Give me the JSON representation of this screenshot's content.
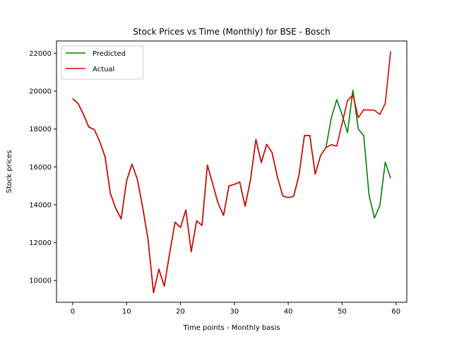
{
  "chart_data": {
    "type": "line",
    "title": "Stock Prices vs Time (Monthly) for BSE - Bosch",
    "xlabel": "Time points - Monthly basis",
    "ylabel": "Stock prices",
    "xlim": [
      -3,
      62
    ],
    "ylim": [
      8850,
      22650
    ],
    "xticks": [
      0,
      10,
      20,
      30,
      40,
      50,
      60
    ],
    "yticks": [
      10000,
      12000,
      14000,
      16000,
      18000,
      20000,
      22000
    ],
    "xtick_labels": [
      "0",
      "10",
      "20",
      "30",
      "40",
      "50",
      "60"
    ],
    "ytick_labels": [
      "10000",
      "12000",
      "14000",
      "16000",
      "18000",
      "20000",
      "22000"
    ],
    "grid": false,
    "legend_position": "upper-left",
    "series": [
      {
        "name": "Predicted",
        "color": "#008000",
        "x": [
          0,
          1,
          2,
          3,
          4,
          5,
          6,
          7,
          8,
          9,
          10,
          11,
          12,
          13,
          14,
          15,
          16,
          17,
          18,
          19,
          20,
          21,
          22,
          23,
          24,
          25,
          26,
          27,
          28,
          29,
          30,
          31,
          32,
          33,
          34,
          35,
          36,
          37,
          38,
          39,
          40,
          41,
          42,
          43,
          44,
          45,
          46,
          47,
          48,
          49,
          50,
          51,
          52,
          53,
          54,
          55,
          56,
          57,
          58,
          59
        ],
        "values": [
          19600,
          19350,
          18780,
          18100,
          17980,
          17350,
          16550,
          14600,
          13800,
          13250,
          15250,
          16150,
          15350,
          13850,
          12150,
          9350,
          10600,
          9700,
          11450,
          13080,
          12800,
          13730,
          11520,
          13150,
          12910,
          16100,
          15090,
          14070,
          13440,
          15000,
          15080,
          15200,
          13920,
          15320,
          17450,
          16230,
          17190,
          16750,
          15460,
          14460,
          14380,
          14440,
          15570,
          17650,
          17660,
          15610,
          16600,
          17020,
          18600,
          19550,
          18750,
          17810,
          20050,
          18000,
          17650,
          14500,
          13300,
          13960,
          16250,
          15400
        ]
      },
      {
        "name": "Actual",
        "color": "#dd0000",
        "x": [
          0,
          1,
          2,
          3,
          4,
          5,
          6,
          7,
          8,
          9,
          10,
          11,
          12,
          13,
          14,
          15,
          16,
          17,
          18,
          19,
          20,
          21,
          22,
          23,
          24,
          25,
          26,
          27,
          28,
          29,
          30,
          31,
          32,
          33,
          34,
          35,
          36,
          37,
          38,
          39,
          40,
          41,
          42,
          43,
          44,
          45,
          46,
          47,
          48,
          49,
          50,
          51,
          52,
          53,
          54,
          55,
          56,
          57,
          58,
          59
        ],
        "values": [
          19600,
          19350,
          18780,
          18100,
          17980,
          17350,
          16550,
          14600,
          13800,
          13250,
          15250,
          16150,
          15350,
          13850,
          12150,
          9350,
          10600,
          9700,
          11450,
          13080,
          12800,
          13730,
          11520,
          13150,
          12910,
          16100,
          15090,
          14070,
          13440,
          15000,
          15080,
          15200,
          13920,
          15320,
          17450,
          16230,
          17190,
          16750,
          15460,
          14460,
          14380,
          14440,
          15570,
          17650,
          17660,
          15610,
          16600,
          17020,
          17170,
          17100,
          18300,
          19500,
          19800,
          18600,
          19010,
          19000,
          18990,
          18770,
          19350,
          22100
        ]
      }
    ]
  }
}
